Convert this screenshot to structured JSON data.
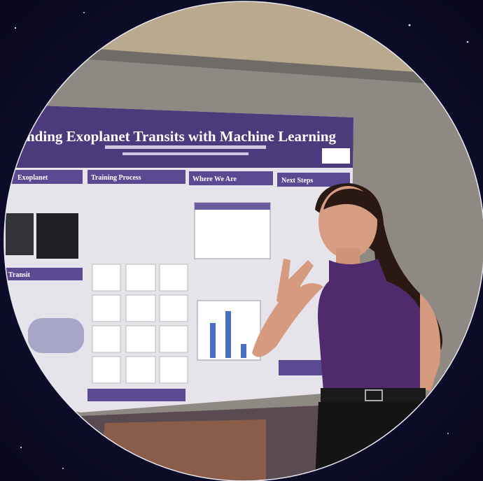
{
  "poster": {
    "title": "nding Exoplanet Transits with Machine Learning",
    "sections": [
      "Exoplanet",
      "Training Process",
      "Where We Are",
      "Next Steps",
      "Transit"
    ]
  }
}
